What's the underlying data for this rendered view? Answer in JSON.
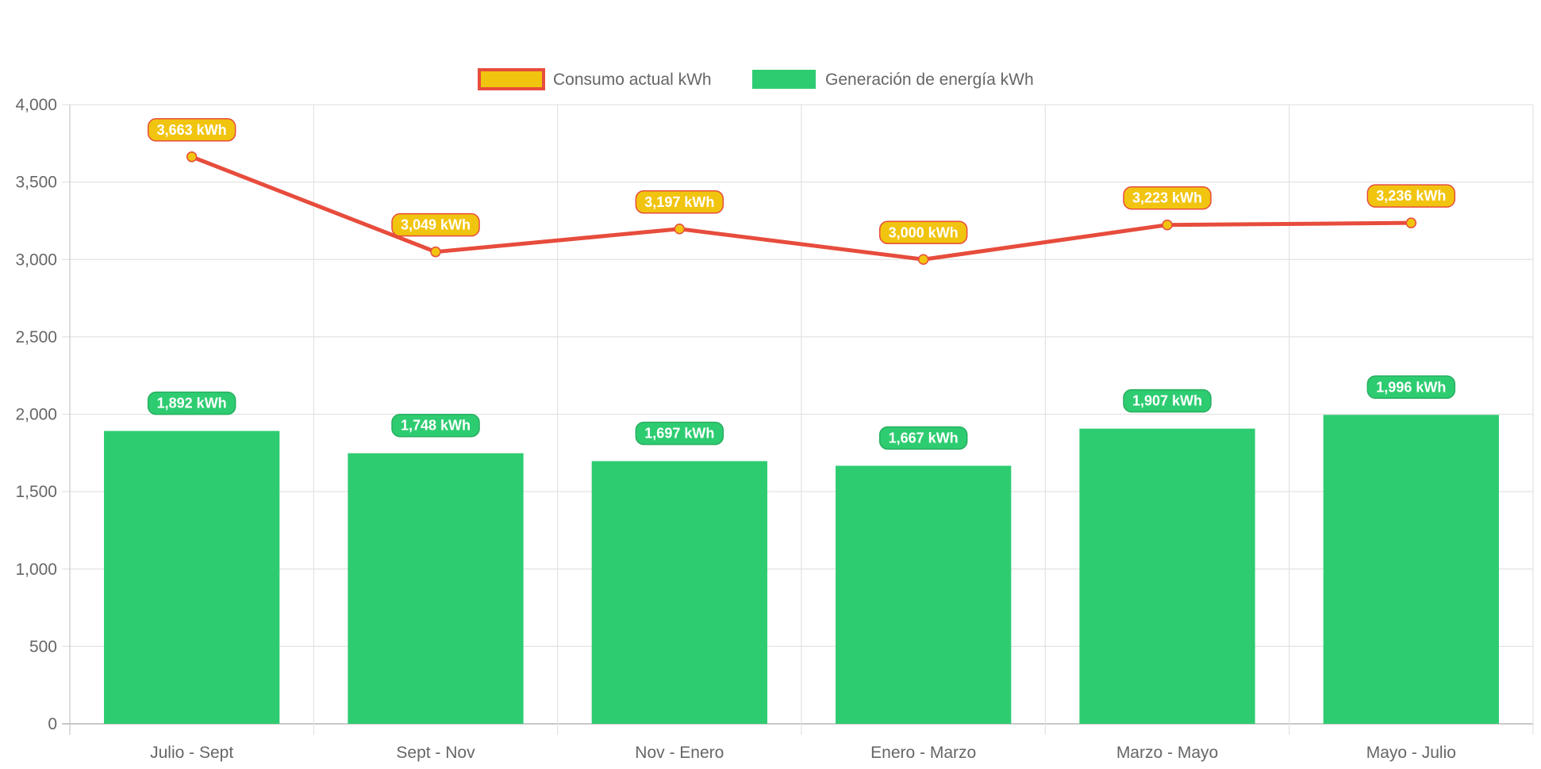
{
  "chart_data": {
    "type": "bar",
    "title": "",
    "xlabel": "",
    "ylabel": "",
    "categories": [
      "Julio - Sept",
      "Sept - Nov",
      "Nov - Enero",
      "Enero - Marzo",
      "Marzo - Mayo",
      "Mayo - Julio"
    ],
    "ylim": [
      0,
      4000
    ],
    "yticks": [
      0,
      500,
      1000,
      1500,
      2000,
      2500,
      3000,
      3500,
      4000
    ],
    "grid": true,
    "legend_position": "top",
    "data_label_suffix": " kWh",
    "series": [
      {
        "name": "Consumo actual kWh",
        "type": "line",
        "values": [
          3663,
          3049,
          3197,
          3000,
          3223,
          3236
        ],
        "color": "#e74c3c",
        "point_color": "#f1c40f"
      },
      {
        "name": "Generación de energía kWh",
        "type": "bar",
        "values": [
          1892,
          1748,
          1697,
          1667,
          1907,
          1996
        ],
        "color": "#2ecc71",
        "label_border": "#27ae60"
      }
    ]
  }
}
